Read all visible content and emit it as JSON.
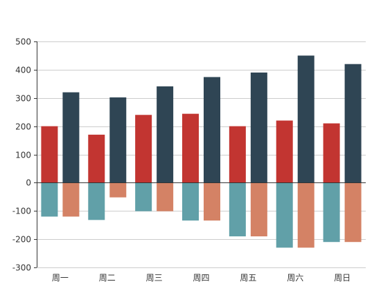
{
  "chart_data": {
    "type": "bar",
    "categories": [
      "周一",
      "周二",
      "周三",
      "周四",
      "周五",
      "周六",
      "周日"
    ],
    "series": [
      {
        "values": [
          200,
          170,
          240,
          244,
          200,
          220,
          210
        ],
        "color": "#c23531",
        "slot": 0
      },
      {
        "values": [
          320,
          302,
          341,
          374,
          390,
          450,
          420
        ],
        "color": "#2f4554",
        "slot": 1
      },
      {
        "values": [
          -120,
          -132,
          -101,
          -134,
          -190,
          -230,
          -210
        ],
        "color": "#61a0a8",
        "slot": 0
      },
      {
        "values": [
          -120,
          -52,
          -101,
          -134,
          -190,
          -230,
          -210
        ],
        "color": "#d48265",
        "slot": 1
      }
    ],
    "ylim": [
      -300,
      500
    ],
    "yticks": [
      -300,
      -200,
      -100,
      0,
      100,
      200,
      300,
      400,
      500
    ],
    "grid": true,
    "title": "",
    "xlabel": "",
    "ylabel": ""
  }
}
